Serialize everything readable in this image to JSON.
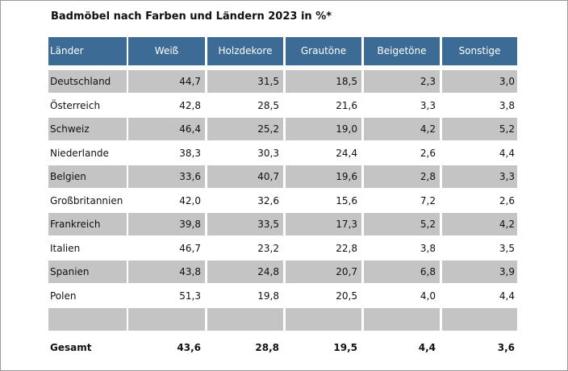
{
  "title": "Badmöbel nach Farben und Ländern 2023 in %*",
  "chart_data": {
    "type": "table",
    "title": "Badmöbel nach Farben und Ländern 2023 in %*",
    "columns": [
      "Länder",
      "Weiß",
      "Holzdekore",
      "Grautöne",
      "Beigetöne",
      "Sonstige"
    ],
    "rows": [
      [
        "Deutschland",
        "44,7",
        "31,5",
        "18,5",
        "2,3",
        "3,0"
      ],
      [
        "Österreich",
        "42,8",
        "28,5",
        "21,6",
        "3,3",
        "3,8"
      ],
      [
        "Schweiz",
        "46,4",
        "25,2",
        "19,0",
        "4,2",
        "5,2"
      ],
      [
        "Niederlande",
        "38,3",
        "30,3",
        "24,4",
        "2,6",
        "4,4"
      ],
      [
        "Belgien",
        "33,6",
        "40,7",
        "19,6",
        "2,8",
        "3,3"
      ],
      [
        "Großbritannien",
        "42,0",
        "32,6",
        "15,6",
        "7,2",
        "2,6"
      ],
      [
        "Frankreich",
        "39,8",
        "33,5",
        "17,3",
        "5,2",
        "4,2"
      ],
      [
        "Italien",
        "46,7",
        "23,2",
        "22,8",
        "3,8",
        "3,5"
      ],
      [
        "Spanien",
        "43,8",
        "24,8",
        "20,7",
        "6,8",
        "3,9"
      ],
      [
        "Polen",
        "51,3",
        "19,8",
        "20,5",
        "4,0",
        "4,4"
      ],
      [
        "",
        "",
        "",
        "",
        "",
        ""
      ]
    ],
    "total": [
      "Gesamt",
      "43,6",
      "28,8",
      "19,5",
      "4,4",
      "3,6"
    ]
  },
  "colors": {
    "header_bg": "#3c6c96",
    "header_text": "#ffffff",
    "shaded_row": "#c4c4c4"
  }
}
